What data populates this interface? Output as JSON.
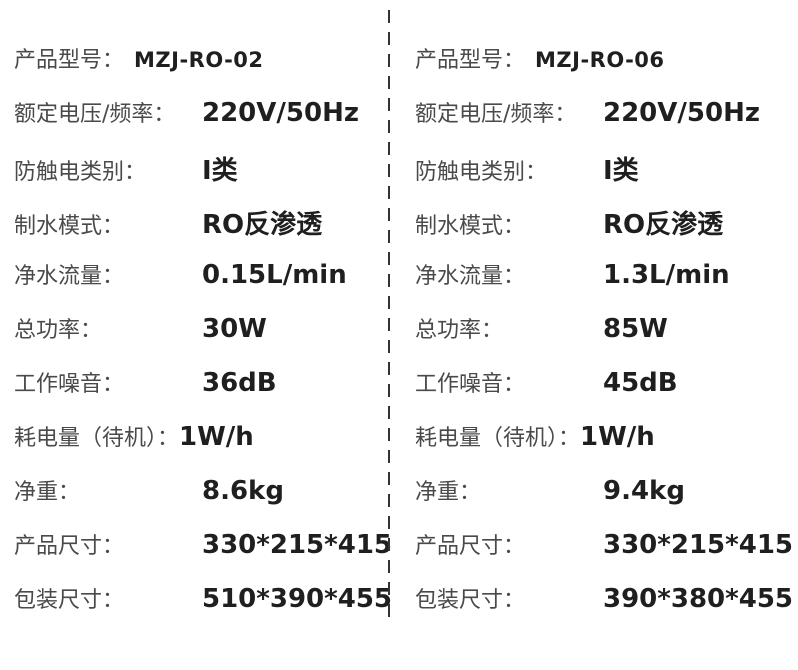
{
  "colors": {
    "background": "#ffffff",
    "label": "#4a4a4a",
    "value": "#1f1f1f",
    "divider": "#333333"
  },
  "columns": [
    {
      "id": "left",
      "rows": [
        {
          "label": "产品型号：",
          "value": "MZJ-RO-02"
        },
        {
          "label": "额定电压/频率：",
          "value": "220V/50Hz"
        },
        {
          "label": "防触电类别：",
          "value": "I类"
        },
        {
          "label": "制水模式：",
          "value": "RO反渗透"
        },
        {
          "label": "净水流量：",
          "value": "0.15L/min"
        },
        {
          "label": "总功率：",
          "value": "30W"
        },
        {
          "label": "工作噪音：",
          "value": "36dB"
        },
        {
          "label": "耗电量（待机）：",
          "value": "1W/h"
        },
        {
          "label": "净重：",
          "value": "8.6kg"
        },
        {
          "label": "产品尺寸：",
          "value": "330*215*415"
        },
        {
          "label": "包装尺寸：",
          "value": "510*390*455"
        }
      ]
    },
    {
      "id": "right",
      "rows": [
        {
          "label": "产品型号：",
          "value": "MZJ-RO-06"
        },
        {
          "label": "额定电压/频率：",
          "value": "220V/50Hz"
        },
        {
          "label": "防触电类别：",
          "value": "I类"
        },
        {
          "label": "制水模式：",
          "value": "RO反渗透"
        },
        {
          "label": "净水流量：",
          "value": "1.3L/min"
        },
        {
          "label": "总功率：",
          "value": "85W"
        },
        {
          "label": "工作噪音：",
          "value": "45dB"
        },
        {
          "label": "耗电量（待机）：",
          "value": "1W/h"
        },
        {
          "label": "净重：",
          "value": "9.4kg"
        },
        {
          "label": "产品尺寸：",
          "value": "330*215*415"
        },
        {
          "label": "包装尺寸：",
          "value": "390*380*455"
        }
      ]
    }
  ]
}
